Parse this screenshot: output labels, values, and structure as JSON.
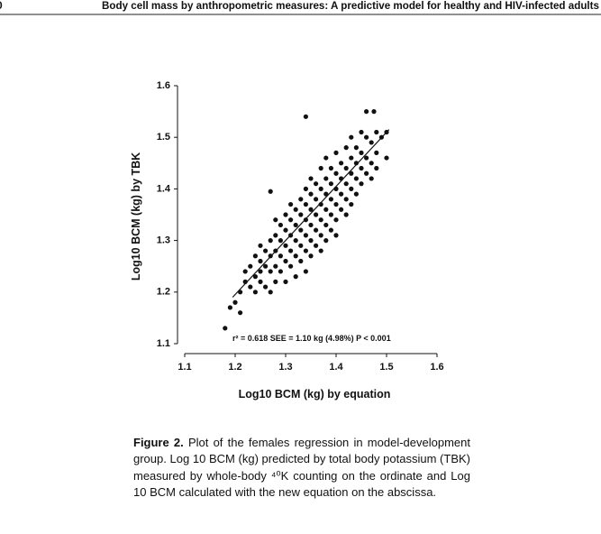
{
  "header": {
    "page_number": "0",
    "running_title": "Body cell mass by anthropometric measures: A predictive model for healthy and HIV-infected adults"
  },
  "chart_data": {
    "type": "scatter",
    "y_label": "Log10 BCM (kg) by TBK",
    "x_label": "Log10 BCM (kg) by equation",
    "annotation": "r² = 0.618  SEE = 1.10 kg (4.98%)  P < 0.001",
    "color": "#111111",
    "xlim": [
      1.1,
      1.6
    ],
    "ylim": [
      1.1,
      1.6
    ],
    "xticks": [
      1.1,
      1.2,
      1.3,
      1.4,
      1.5,
      1.6
    ],
    "yticks": [
      1.1,
      1.2,
      1.3,
      1.4,
      1.5,
      1.6
    ],
    "regression": {
      "x": [
        1.195,
        1.505
      ],
      "y": [
        1.19,
        1.515
      ]
    },
    "x": [
      1.18,
      1.19,
      1.2,
      1.21,
      1.21,
      1.22,
      1.22,
      1.23,
      1.23,
      1.24,
      1.24,
      1.24,
      1.25,
      1.25,
      1.25,
      1.25,
      1.26,
      1.26,
      1.26,
      1.27,
      1.27,
      1.27,
      1.27,
      1.28,
      1.28,
      1.28,
      1.28,
      1.28,
      1.29,
      1.29,
      1.29,
      1.29,
      1.3,
      1.3,
      1.3,
      1.3,
      1.3,
      1.31,
      1.31,
      1.31,
      1.31,
      1.31,
      1.32,
      1.32,
      1.32,
      1.32,
      1.32,
      1.33,
      1.33,
      1.33,
      1.33,
      1.33,
      1.34,
      1.34,
      1.34,
      1.34,
      1.34,
      1.34,
      1.35,
      1.35,
      1.35,
      1.35,
      1.35,
      1.35,
      1.36,
      1.36,
      1.36,
      1.36,
      1.36,
      1.37,
      1.37,
      1.37,
      1.37,
      1.37,
      1.37,
      1.38,
      1.38,
      1.38,
      1.38,
      1.38,
      1.38,
      1.39,
      1.39,
      1.39,
      1.39,
      1.39,
      1.4,
      1.4,
      1.4,
      1.4,
      1.4,
      1.4,
      1.41,
      1.41,
      1.41,
      1.41,
      1.42,
      1.42,
      1.42,
      1.42,
      1.42,
      1.43,
      1.43,
      1.43,
      1.43,
      1.43,
      1.44,
      1.44,
      1.44,
      1.44,
      1.45,
      1.45,
      1.45,
      1.45,
      1.46,
      1.46,
      1.46,
      1.47,
      1.47,
      1.47,
      1.48,
      1.48,
      1.48,
      1.49,
      1.5,
      1.5,
      1.46,
      1.27,
      1.475,
      1.34
    ],
    "values": [
      1.13,
      1.17,
      1.18,
      1.16,
      1.2,
      1.22,
      1.24,
      1.21,
      1.25,
      1.2,
      1.23,
      1.27,
      1.22,
      1.24,
      1.26,
      1.29,
      1.21,
      1.25,
      1.28,
      1.2,
      1.24,
      1.27,
      1.3,
      1.22,
      1.25,
      1.28,
      1.31,
      1.34,
      1.24,
      1.27,
      1.3,
      1.33,
      1.22,
      1.26,
      1.29,
      1.32,
      1.35,
      1.25,
      1.28,
      1.31,
      1.34,
      1.37,
      1.23,
      1.27,
      1.3,
      1.33,
      1.36,
      1.26,
      1.29,
      1.32,
      1.35,
      1.38,
      1.24,
      1.28,
      1.31,
      1.34,
      1.37,
      1.4,
      1.27,
      1.3,
      1.33,
      1.36,
      1.39,
      1.42,
      1.29,
      1.32,
      1.35,
      1.38,
      1.41,
      1.28,
      1.31,
      1.34,
      1.37,
      1.4,
      1.44,
      1.3,
      1.33,
      1.36,
      1.39,
      1.42,
      1.46,
      1.32,
      1.35,
      1.38,
      1.41,
      1.44,
      1.31,
      1.34,
      1.37,
      1.4,
      1.43,
      1.47,
      1.36,
      1.39,
      1.42,
      1.45,
      1.35,
      1.38,
      1.41,
      1.44,
      1.48,
      1.37,
      1.4,
      1.43,
      1.46,
      1.5,
      1.39,
      1.42,
      1.45,
      1.48,
      1.41,
      1.44,
      1.47,
      1.51,
      1.43,
      1.46,
      1.5,
      1.42,
      1.45,
      1.49,
      1.44,
      1.47,
      1.51,
      1.5,
      1.46,
      1.51,
      1.55,
      1.395,
      1.55,
      1.54
    ]
  },
  "caption": {
    "label": "Figure 2.",
    "text": "Plot of the females regression in model-development group. Log 10 BCM (kg) predicted by total body potassium (TBK) measured by whole-body ⁴⁰K counting on the ordinate and Log 10 BCM calculated with the new equation on the abscissa."
  }
}
